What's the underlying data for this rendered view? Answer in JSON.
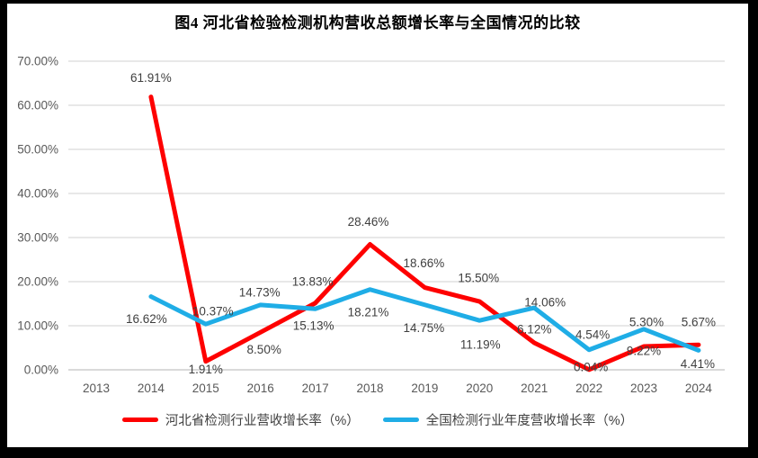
{
  "title": "图4  河北省检验检测机构营收总额增长率与全国情况的比较",
  "colors": {
    "hebei_red": "#fe0000",
    "national_blue": "#1fade6",
    "gridline": "#d9d9d9",
    "axis_line": "#c3c3c3",
    "tick_text": "#595959",
    "data_label_text": "#3f3f3f",
    "frame": "#000000",
    "background": "#ffffff"
  },
  "chart_data": {
    "type": "line",
    "categories": [
      "2013",
      "2014",
      "2015",
      "2016",
      "2017",
      "2018",
      "2019",
      "2020",
      "2021",
      "2022",
      "2023",
      "2024"
    ],
    "series": [
      {
        "name": "河北省检测行业营收增长率（%）",
        "color": "#fe0000",
        "values": [
          null,
          61.91,
          1.91,
          8.5,
          15.13,
          28.46,
          18.66,
          15.5,
          6.12,
          0.04,
          5.3,
          5.67
        ],
        "labels": [
          null,
          "61.91%",
          "1.91%",
          "8.50%",
          "15.13%",
          "28.46%",
          "18.66%",
          "15.50%",
          "6.12%",
          "0.04%",
          "5.30%",
          "5.67%"
        ]
      },
      {
        "name": "全国检测行业年度营收增长率（%）",
        "color": "#1fade6",
        "values": [
          null,
          16.62,
          10.37,
          14.73,
          13.83,
          18.21,
          14.75,
          11.19,
          14.06,
          4.54,
          9.22,
          4.41
        ],
        "labels": [
          null,
          "16.62%",
          "10.37%",
          "14.73%",
          "13.83%",
          "18.21%",
          "14.75%",
          "11.19%",
          "14.06%",
          "4.54%",
          "9.22%",
          "4.41%"
        ]
      }
    ],
    "y_axis": {
      "min": 0,
      "max": 70,
      "step": 10,
      "tick_labels": [
        "0.00%",
        "10.00%",
        "20.00%",
        "30.00%",
        "40.00%",
        "50.00%",
        "60.00%",
        "70.00%"
      ]
    },
    "grid": true,
    "legend_position": "bottom",
    "data_labels": true
  }
}
